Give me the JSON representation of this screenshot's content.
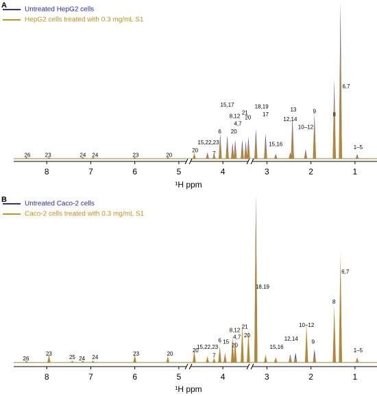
{
  "chart_data": [
    {
      "type": "spectrum",
      "panel_label": "A",
      "xlabel": "¹H ppm",
      "xlim": [
        8.75,
        0.5
      ],
      "xticks": [
        8,
        7,
        6,
        5,
        4,
        3,
        2,
        1
      ],
      "ylim": [
        0,
        100
      ],
      "axis_breaks": [
        4.78,
        3.38
      ],
      "x": [
        8.46,
        7.95,
        7.18,
        6.95,
        6.0,
        5.25,
        4.65,
        4.35,
        4.2,
        4.06,
        3.9,
        3.78,
        3.72,
        3.56,
        3.48,
        3.42,
        3.25,
        3.03,
        2.8,
        2.47,
        2.42,
        2.12,
        1.92,
        1.47,
        1.33,
        0.95
      ],
      "series": [
        {
          "name": "Untreated HepG2 cells",
          "color": "#2b2bb5",
          "values": [
            1,
            1,
            1,
            1,
            1,
            1,
            3,
            4,
            3,
            16,
            15,
            10,
            12,
            12,
            11,
            14,
            19,
            16,
            3,
            4,
            27,
            6,
            29,
            51,
            100,
            3
          ]
        },
        {
          "name": "HepG2 cells treated with 0.3 mg/mL S1",
          "color": "#c8901a",
          "values": [
            1,
            1,
            1,
            1,
            1,
            1,
            4,
            3,
            2,
            13,
            12,
            8,
            10,
            9,
            9,
            11,
            15,
            12,
            2,
            3,
            22,
            5,
            25,
            45,
            85,
            2
          ]
        }
      ],
      "annotations": [
        {
          "text": "26",
          "x": 8.44,
          "y": 2
        },
        {
          "text": "23",
          "x": 7.97,
          "y": 2
        },
        {
          "text": "24",
          "x": 7.18,
          "y": 2
        },
        {
          "text": "24",
          "x": 6.9,
          "y": 2
        },
        {
          "text": "23",
          "x": 5.98,
          "y": 2
        },
        {
          "text": "20",
          "x": 5.22,
          "y": 2
        },
        {
          "text": "20",
          "x": 4.63,
          "y": 5
        },
        {
          "text": "15,22,23",
          "x": 4.33,
          "y": 10
        },
        {
          "text": "7",
          "x": 4.2,
          "y": 3
        },
        {
          "text": "6",
          "x": 4.07,
          "y": 17
        },
        {
          "text": "15,17",
          "x": 3.9,
          "y": 34
        },
        {
          "text": "8,12",
          "x": 3.73,
          "y": 27
        },
        {
          "text": "4,7",
          "x": 3.66,
          "y": 22
        },
        {
          "text": "20",
          "x": 3.75,
          "y": 17
        },
        {
          "text": "21",
          "x": 3.5,
          "y": 29
        },
        {
          "text": "20",
          "x": 3.43,
          "y": 26
        },
        {
          "text": "18,19",
          "x": 3.12,
          "y": 33
        },
        {
          "text": "17",
          "x": 3.03,
          "y": 28
        },
        {
          "text": "15,16",
          "x": 2.8,
          "y": 9
        },
        {
          "text": "12,14",
          "x": 2.47,
          "y": 25
        },
        {
          "text": "13",
          "x": 2.4,
          "y": 31
        },
        {
          "text": "10–12",
          "x": 2.12,
          "y": 20
        },
        {
          "text": "9",
          "x": 1.92,
          "y": 30
        },
        {
          "text": "8",
          "x": 1.47,
          "y": 28
        },
        {
          "text": "6,7",
          "x": 1.2,
          "y": 46
        },
        {
          "text": "1–5",
          "x": 0.93,
          "y": 7
        }
      ]
    },
    {
      "type": "spectrum",
      "panel_label": "B",
      "xlabel": "¹H ppm",
      "xlim": [
        8.75,
        0.5
      ],
      "xticks": [
        8,
        7,
        6,
        5,
        4,
        3,
        2,
        1
      ],
      "ylim": [
        0,
        100
      ],
      "axis_breaks": [
        4.78,
        3.38
      ],
      "x": [
        8.46,
        7.95,
        7.42,
        7.18,
        6.95,
        6.0,
        5.25,
        4.65,
        4.35,
        4.2,
        4.07,
        3.95,
        3.78,
        3.72,
        3.56,
        3.42,
        3.25,
        3.03,
        2.8,
        2.47,
        2.35,
        2.1,
        1.92,
        1.47,
        1.33,
        0.95
      ],
      "series": [
        {
          "name": "Untreated Caco-2 cells",
          "color": "#2b2bb5",
          "values": [
            1,
            4,
            1,
            1,
            1,
            4,
            3,
            6,
            3,
            2,
            9,
            5,
            13,
            12,
            18,
            16,
            100,
            4,
            3,
            5,
            6,
            18,
            8,
            30,
            60,
            3
          ]
        },
        {
          "name": "Caco-2 cells treated with 0.3 mg/mL S1",
          "color": "#c8901a",
          "values": [
            1,
            5,
            1,
            1,
            1,
            5,
            4,
            8,
            4,
            3,
            10,
            6,
            16,
            14,
            24,
            20,
            95,
            5,
            3,
            4,
            3,
            24,
            5,
            35,
            66,
            3
          ]
        }
      ],
      "annotations": [
        {
          "text": "26",
          "x": 8.47,
          "y": 2
        },
        {
          "text": "23",
          "x": 7.95,
          "y": 5
        },
        {
          "text": "25",
          "x": 7.42,
          "y": 3
        },
        {
          "text": "24",
          "x": 7.2,
          "y": 2
        },
        {
          "text": "24",
          "x": 6.9,
          "y": 3
        },
        {
          "text": "23",
          "x": 5.97,
          "y": 5
        },
        {
          "text": "20",
          "x": 5.2,
          "y": 5
        },
        {
          "text": "20",
          "x": 4.62,
          "y": 7
        },
        {
          "text": "15,22,23",
          "x": 4.35,
          "y": 9
        },
        {
          "text": "7",
          "x": 4.2,
          "y": 4
        },
        {
          "text": "6",
          "x": 4.07,
          "y": 13
        },
        {
          "text": "15",
          "x": 3.93,
          "y": 12
        },
        {
          "text": "8,12",
          "x": 3.73,
          "y": 19
        },
        {
          "text": "4,7",
          "x": 3.68,
          "y": 15
        },
        {
          "text": "20",
          "x": 3.73,
          "y": 10
        },
        {
          "text": "21",
          "x": 3.5,
          "y": 21
        },
        {
          "text": "20",
          "x": 3.45,
          "y": 16
        },
        {
          "text": "18,19",
          "x": 3.1,
          "y": 45
        },
        {
          "text": "15,16",
          "x": 2.78,
          "y": 9
        },
        {
          "text": "12,14",
          "x": 2.45,
          "y": 14
        },
        {
          "text": "10–12",
          "x": 2.1,
          "y": 22
        },
        {
          "text": "9",
          "x": 1.95,
          "y": 12
        },
        {
          "text": "8",
          "x": 1.48,
          "y": 36
        },
        {
          "text": "6,7",
          "x": 1.22,
          "y": 54
        },
        {
          "text": "1–5",
          "x": 0.93,
          "y": 7
        }
      ]
    }
  ]
}
